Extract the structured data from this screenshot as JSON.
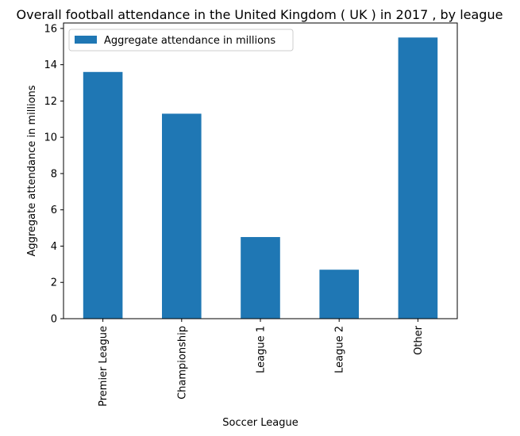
{
  "chart_data": {
    "type": "bar",
    "title": "Overall football attendance in the United Kingdom ( UK ) in 2017 , by league",
    "xlabel": "Soccer League",
    "ylabel": "Aggregate attendance in millions",
    "categories": [
      "Premier League",
      "Championship",
      "League 1",
      "League 2",
      "Other"
    ],
    "series": [
      {
        "name": "Aggregate attendance in millions",
        "values": [
          13.6,
          11.3,
          4.5,
          2.7,
          15.5
        ],
        "color": "#1f77b4"
      }
    ],
    "ylim": [
      0,
      16.3
    ],
    "yticks": [
      "0",
      "2",
      "4",
      "6",
      "8",
      "10",
      "12",
      "14",
      "16"
    ],
    "grid": false,
    "legend_position": "top-left"
  }
}
